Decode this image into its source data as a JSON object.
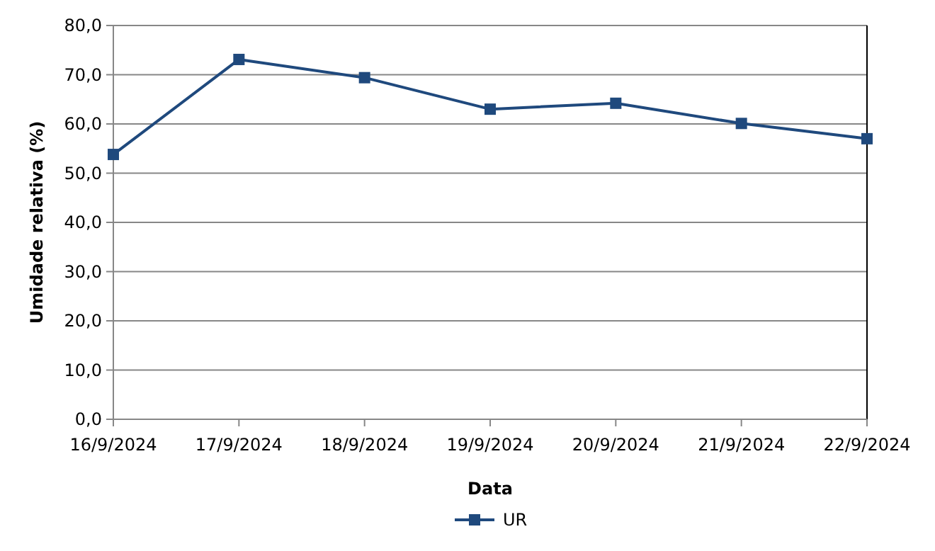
{
  "chart_data": {
    "type": "line",
    "xlabel": "Data",
    "ylabel": "Umidade relativa (%)",
    "categories": [
      "16/9/2024",
      "17/9/2024",
      "18/9/2024",
      "19/9/2024",
      "20/9/2024",
      "21/9/2024",
      "22/9/2024"
    ],
    "series": [
      {
        "name": "UR",
        "color": "#1f497d",
        "values": [
          53.8,
          73.1,
          69.4,
          63.0,
          64.2,
          60.1,
          57.0
        ]
      }
    ],
    "ylim": [
      0,
      80
    ],
    "yticks": [
      {
        "value": 0,
        "label": "0,0"
      },
      {
        "value": 10,
        "label": "10,0"
      },
      {
        "value": 20,
        "label": "20,0"
      },
      {
        "value": 30,
        "label": "30,0"
      },
      {
        "value": 40,
        "label": "40,0"
      },
      {
        "value": 50,
        "label": "50,0"
      },
      {
        "value": 60,
        "label": "60,0"
      },
      {
        "value": 70,
        "label": "70,0"
      },
      {
        "value": 80,
        "label": "80,0"
      }
    ],
    "grid": "y",
    "legend": "bottom",
    "marker": "square",
    "line_style": "solid"
  }
}
